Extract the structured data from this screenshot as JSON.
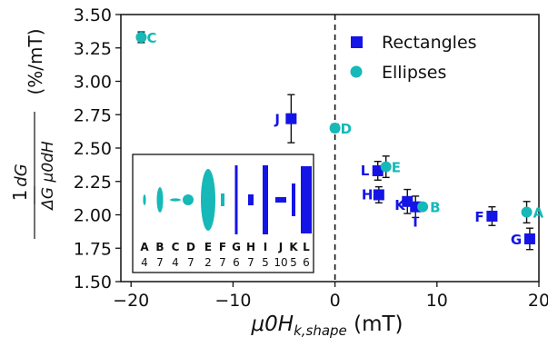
{
  "chart_data": {
    "type": "scatter",
    "xlabel_main": "μ0Hk,shape",
    "xlabel_sub": "k,shape",
    "xlabel_unit": "(mT)",
    "ylabel": {
      "one": "1",
      "numerator": "dG",
      "denominator": "ΔG μ0dH",
      "unit": "(%/mT)"
    },
    "xlim": [
      -21,
      20
    ],
    "ylim": [
      1.5,
      3.5
    ],
    "x_ticks": [
      -20,
      -10,
      0,
      10,
      20
    ],
    "x_tick_labels": [
      "−20",
      "−10",
      "0",
      "10",
      "20"
    ],
    "y_ticks": [
      1.5,
      1.75,
      2.0,
      2.25,
      2.5,
      2.75,
      3.0,
      3.25,
      3.5
    ],
    "y_tick_labels": [
      "1.50",
      "1.75",
      "2.00",
      "2.25",
      "2.50",
      "2.75",
      "3.00",
      "3.25",
      "3.50"
    ],
    "vertical_reference_line": {
      "x": 0,
      "style": "dashed"
    },
    "legend": {
      "position": "top-right",
      "entries": [
        "Rectangles",
        "Ellipses"
      ]
    },
    "series": [
      {
        "name": "Rectangles",
        "marker": "square",
        "color": "#1414e6",
        "points": [
          {
            "label": "J",
            "x": -4.3,
            "y": 2.72,
            "err": 0.18
          },
          {
            "label": "L",
            "x": 4.2,
            "y": 2.33,
            "err": 0.07
          },
          {
            "label": "H",
            "x": 4.3,
            "y": 2.15,
            "err": 0.06
          },
          {
            "label": "K",
            "x": 7.1,
            "y": 2.1,
            "err": 0.09
          },
          {
            "label": "I",
            "x": 7.9,
            "y": 2.06,
            "err": 0.08
          },
          {
            "label": "F",
            "x": 15.4,
            "y": 1.99,
            "err": 0.07
          },
          {
            "label": "G",
            "x": 19.1,
            "y": 1.82,
            "err": 0.08
          }
        ]
      },
      {
        "name": "Ellipses",
        "marker": "circle",
        "color": "#16b8b8",
        "points": [
          {
            "label": "C",
            "x": -19.0,
            "y": 3.33,
            "err": 0.04
          },
          {
            "label": "D",
            "x": 0.0,
            "y": 2.65,
            "err": 0.03
          },
          {
            "label": "E",
            "x": 5.0,
            "y": 2.36,
            "err": 0.08
          },
          {
            "label": "B",
            "x": 8.6,
            "y": 2.06,
            "err": 0.02
          },
          {
            "label": "A",
            "x": 18.8,
            "y": 2.02,
            "err": 0.08
          }
        ]
      }
    ],
    "inset": {
      "letters": [
        "A",
        "B",
        "C",
        "D",
        "E",
        "F",
        "G",
        "H",
        "I",
        "J",
        "K",
        "L"
      ],
      "numbers": [
        "4",
        "7",
        "4",
        "7",
        "2",
        "7",
        "6",
        "7",
        "5",
        "10",
        "5",
        "6"
      ]
    }
  },
  "colors": {
    "rectangle_series": "#1414e6",
    "ellipse_series": "#16b8b8",
    "axis": "#111111"
  }
}
